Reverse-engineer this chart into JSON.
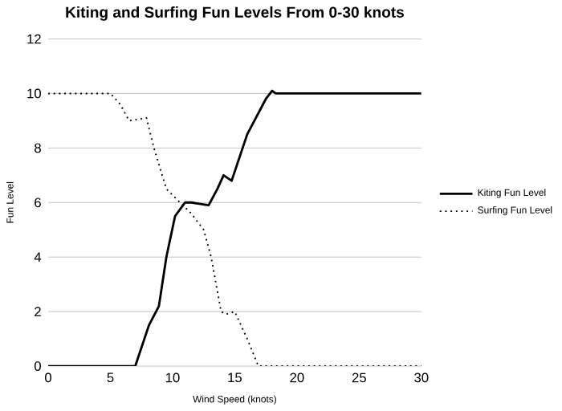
{
  "chart_data": {
    "type": "line",
    "title": "Kiting and Surfing Fun Levels From 0-30 knots",
    "xlabel": "Wind Speed (knots)",
    "ylabel": "Fun Level",
    "series": [
      {
        "name": "Kiting Fun Level",
        "color": "#000000",
        "line_style": "solid",
        "x": [
          0,
          6.2,
          7,
          8.1,
          8.9,
          9.5,
          10.2,
          11,
          11.5,
          12.9,
          13.6,
          14.1,
          14.75,
          16,
          17.5,
          18,
          18.3,
          30
        ],
        "values": [
          0,
          0,
          0,
          1.5,
          2.2,
          4,
          5.5,
          6,
          6,
          5.9,
          6.5,
          7,
          6.8,
          8.5,
          9.8,
          10.1,
          10,
          10
        ]
      },
      {
        "name": "Surfing Fun Level",
        "color": "#000000",
        "line_style": "dotted",
        "x": [
          0,
          5,
          5.8,
          6.5,
          7.9,
          8.5,
          9.5,
          10.6,
          11.5,
          12.5,
          13.1,
          13.9,
          14.3,
          15,
          16,
          16.9,
          30
        ],
        "values": [
          10,
          10,
          9.6,
          9,
          9.1,
          8,
          6.5,
          6,
          5.6,
          5,
          4,
          2,
          1.9,
          2,
          1,
          0,
          0
        ]
      }
    ],
    "xlim": [
      0,
      30
    ],
    "ylim": [
      0,
      12
    ],
    "xticks": [
      0,
      5,
      10,
      15,
      20,
      25,
      30
    ],
    "yticks": [
      0,
      2,
      4,
      6,
      8,
      10,
      12
    ],
    "grid": "y",
    "legend": "right"
  }
}
